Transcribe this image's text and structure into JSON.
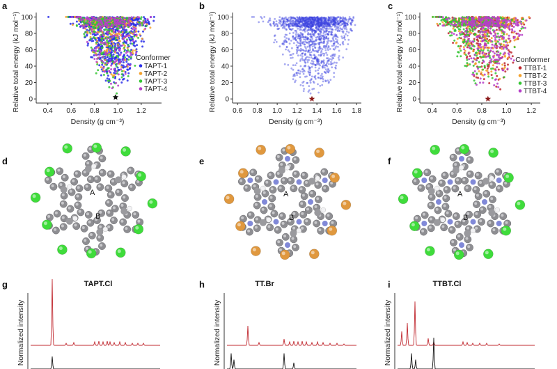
{
  "chart_data": [
    {
      "panel": "a",
      "type": "scatter",
      "xlabel": "Density (g cm⁻³)",
      "ylabel": "Relative total energy (kJ mol⁻¹)",
      "xlim": [
        0.3,
        1.35
      ],
      "ylim": [
        -5,
        102
      ],
      "xticks": [
        "0.4",
        "0.6",
        "0.8",
        "1.0",
        "1.2"
      ],
      "yticks": [
        "0",
        "20",
        "40",
        "60",
        "80",
        "100"
      ],
      "legend": {
        "title": "Conformer",
        "placement": "right",
        "entries": [
          "TAPT-1",
          "TAPT-2",
          "TAPT-3",
          "TAPT-4"
        ]
      },
      "series": [
        {
          "name": "TAPT-1",
          "color": "#2a2ee8",
          "n": 900,
          "center": 0.95,
          "spread": 0.13,
          "minE": 12
        },
        {
          "name": "TAPT-2",
          "color": "#f4a12c",
          "n": 260,
          "center": 0.93,
          "spread": 0.14,
          "minE": 20
        },
        {
          "name": "TAPT-3",
          "color": "#35c634",
          "n": 300,
          "center": 0.92,
          "spread": 0.12,
          "minE": 2
        },
        {
          "name": "TAPT-4",
          "color": "#b63ec8",
          "n": 240,
          "center": 0.94,
          "spread": 0.12,
          "minE": 8
        }
      ],
      "minimum": {
        "x": 0.98,
        "y": 2
      }
    },
    {
      "panel": "b",
      "type": "scatter",
      "xlabel": "Density (g cm⁻³)",
      "ylabel": "Relative total energy (kJ mol⁻¹)",
      "xlim": [
        0.55,
        1.82
      ],
      "ylim": [
        -5,
        102
      ],
      "xticks": [
        "0.6",
        "0.8",
        "1.0",
        "1.2",
        "1.4",
        "1.6",
        "1.8"
      ],
      "yticks": [
        "0",
        "20",
        "40",
        "60",
        "80",
        "100"
      ],
      "series": [
        {
          "name": "",
          "color": "#3b43e0",
          "n": 1400,
          "center": 1.38,
          "spread": 0.18,
          "minE": 2
        }
      ],
      "minimum": {
        "x": 1.35,
        "y": 0
      }
    },
    {
      "panel": "c",
      "type": "scatter",
      "xlabel": "Density (g cm⁻³)",
      "ylabel": "Relative total energy (kJ mol⁻¹)",
      "xlim": [
        0.3,
        1.25
      ],
      "ylim": [
        -5,
        102
      ],
      "xticks": [
        "0.4",
        "0.6",
        "0.8",
        "1.0",
        "1.2"
      ],
      "yticks": [
        "0",
        "20",
        "40",
        "60",
        "80",
        "100"
      ],
      "legend": {
        "title": "Conformer",
        "placement": "right",
        "entries": [
          "TTBT-1",
          "TTBT-2",
          "TTBT-3",
          "TTBT-4"
        ]
      },
      "series": [
        {
          "name": "TTBT-1",
          "color": "#c0282f",
          "n": 320,
          "center": 0.82,
          "spread": 0.14,
          "minE": 2
        },
        {
          "name": "TTBT-2",
          "color": "#f4a12c",
          "n": 320,
          "center": 0.84,
          "spread": 0.14,
          "minE": 15
        },
        {
          "name": "TTBT-3",
          "color": "#35c634",
          "n": 320,
          "center": 0.76,
          "spread": 0.15,
          "minE": 10
        },
        {
          "name": "TTBT-4",
          "color": "#b63ec8",
          "n": 360,
          "center": 0.84,
          "spread": 0.13,
          "minE": 4
        }
      ],
      "minimum": {
        "x": 0.85,
        "y": 0
      }
    }
  ],
  "panels": {
    "a": "a",
    "b": "b",
    "c": "c",
    "d": "d",
    "e": "e",
    "f": "f",
    "g": "g",
    "h": "h",
    "i": "i"
  },
  "structures": {
    "d": {
      "labels": [
        "A",
        "B"
      ],
      "halogen_color": "#3fdc3b"
    },
    "e": {
      "labels": [
        "A",
        "B"
      ],
      "halogen_color": "#e0983e"
    },
    "f": {
      "labels": [
        "A",
        "B"
      ],
      "halogen_color": "#3fdc3b"
    }
  },
  "xrd": {
    "g": {
      "title": "TAPT.Cl"
    },
    "h": {
      "title": "TT.Br"
    },
    "i": {
      "title": "TTBT.Cl"
    },
    "ylabel": "Normalized intensity",
    "colors": {
      "simulated": "#c0282f",
      "experimental": "#111111"
    }
  }
}
